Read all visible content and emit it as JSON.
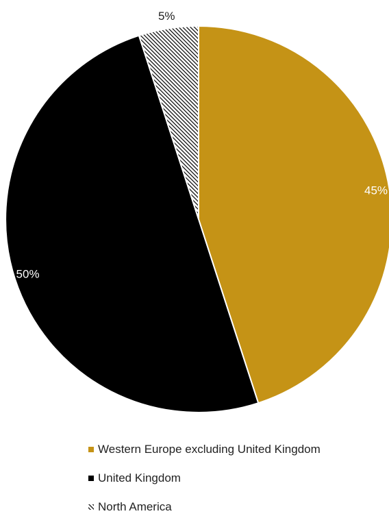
{
  "chart_data": {
    "type": "pie",
    "title": "",
    "start_angle_deg": 0,
    "direction": "clockwise",
    "legend_position": "bottom",
    "slices": [
      {
        "name": "Western Europe excluding United Kingdom",
        "value": 45,
        "label": "45%",
        "color": "#C59316",
        "pattern": "solid",
        "label_color": "#ffffff"
      },
      {
        "name": "United Kingdom",
        "value": 50,
        "label": "50%",
        "color": "#000000",
        "pattern": "solid",
        "label_color": "#ffffff"
      },
      {
        "name": "North America",
        "value": 5,
        "label": "5%",
        "color": "#000000",
        "pattern": "diagonal-hatch",
        "label_color": "#222222"
      }
    ]
  }
}
